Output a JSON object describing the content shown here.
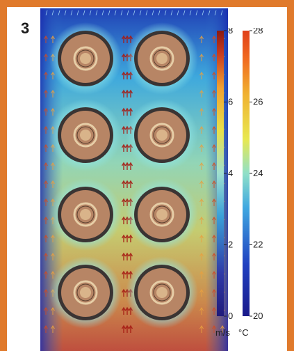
{
  "panel_label": "3",
  "velocity_scale": {
    "unit": "m/s",
    "ticks": [
      "0",
      "2",
      "4",
      "6",
      "8"
    ],
    "min": 0,
    "max": 8,
    "colors": [
      "#1f1a7a",
      "#2f3aa8",
      "#3aa0d8",
      "#9fe0d0",
      "#e8e04a",
      "#f0a030",
      "#c83a1e",
      "#8a1a12"
    ]
  },
  "temperature_scale": {
    "unit": "°C",
    "ticks": [
      "20",
      "22",
      "24",
      "26",
      "28"
    ],
    "min": 20,
    "max": 28,
    "colors": [
      "#1a1a8a",
      "#2040c0",
      "#40a8e0",
      "#90e0c8",
      "#e8e850",
      "#f0b030",
      "#f06a20",
      "#e0401a"
    ]
  },
  "cables": {
    "columns": 2,
    "rows": 4,
    "jacket_color": "#3a3433",
    "insulation_color": "#b78565",
    "conductor_color": "#d9b48a"
  }
}
